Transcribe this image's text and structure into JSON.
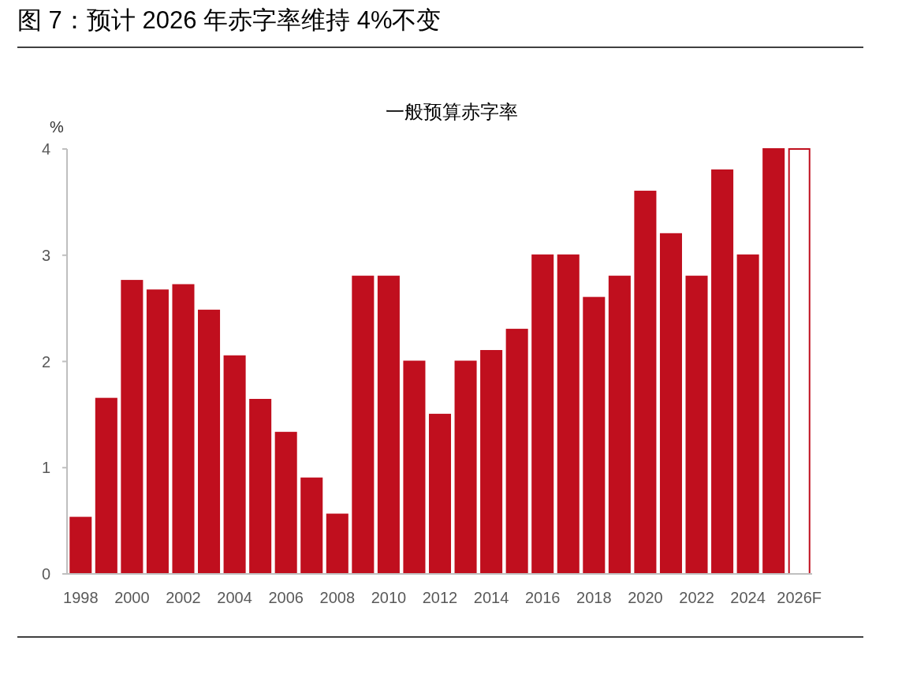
{
  "chart_data": {
    "type": "bar",
    "title": "图 7：预计 2026 年赤字率维持 4%不变",
    "subtitle": "一般预算赤字率",
    "ylabel": "%",
    "categories": [
      "1998",
      null,
      "2000",
      null,
      "2002",
      null,
      "2004",
      null,
      "2006",
      null,
      "2008",
      null,
      "2010",
      null,
      "2012",
      null,
      "2014",
      null,
      "2016",
      null,
      "2018",
      null,
      "2020",
      null,
      "2022",
      null,
      "2024",
      null,
      "2026F"
    ],
    "values": [
      0.53,
      1.65,
      2.76,
      2.67,
      2.72,
      2.48,
      2.05,
      1.64,
      1.33,
      0.9,
      0.56,
      2.8,
      2.8,
      2.0,
      1.5,
      2.0,
      2.1,
      2.3,
      3.0,
      3.0,
      2.6,
      2.8,
      3.6,
      3.2,
      2.8,
      3.8,
      3.0,
      4.0,
      4.0
    ],
    "colors": [
      "#c00f1e",
      "#c00f1e",
      "#c00f1e",
      "#c00f1e",
      "#c00f1e",
      "#c00f1e",
      "#c00f1e",
      "#c00f1e",
      "#c00f1e",
      "#c00f1e",
      "#c00f1e",
      "#c00f1e",
      "#c00f1e",
      "#c00f1e",
      "#c00f1e",
      "#c00f1e",
      "#c00f1e",
      "#c00f1e",
      "#c00f1e",
      "#c00f1e",
      "#c00f1e",
      "#c00f1e",
      "#c00f1e",
      "#c00f1e",
      "#c00f1e",
      "#c00f1e",
      "#c00f1e",
      "#c00f1e",
      "#ffffff"
    ],
    "ylim": [
      0,
      4
    ],
    "yticks": [
      0,
      1,
      2,
      3,
      4
    ],
    "grid": false
  }
}
